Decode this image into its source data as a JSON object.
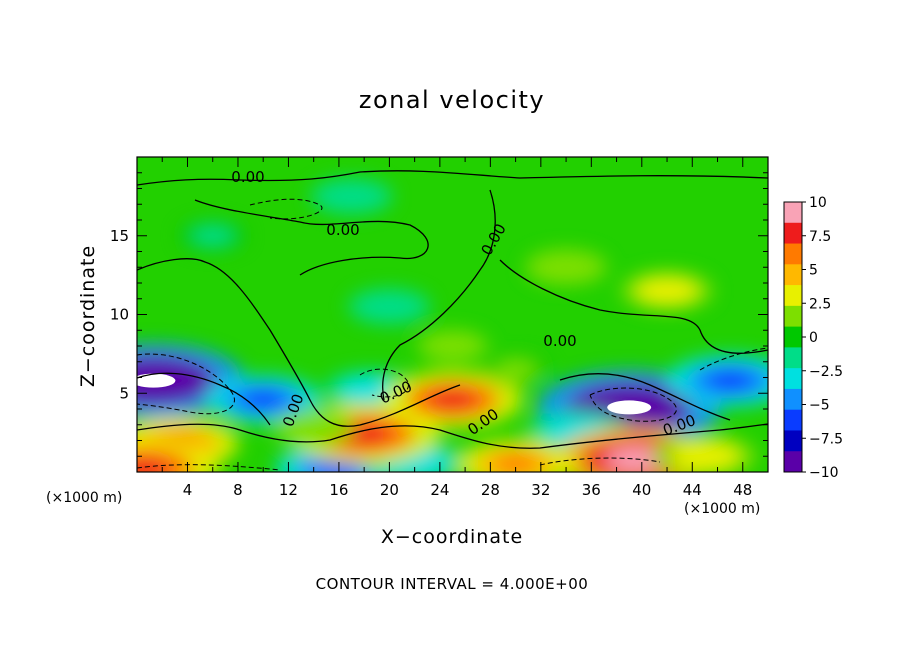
{
  "chart_data": {
    "type": "heatmap",
    "title": "zonal velocity",
    "xlabel": "X−coordinate",
    "ylabel": "Z−coordinate",
    "x_unit": "(×1000 m)",
    "note": "CONTOUR INTERVAL = 4.000E+00",
    "xlim": [
      0,
      50
    ],
    "ylim": [
      0,
      20
    ],
    "x_ticks": [
      4,
      8,
      12,
      16,
      20,
      24,
      28,
      32,
      36,
      40,
      44,
      48
    ],
    "y_ticks": [
      5,
      10,
      15
    ],
    "colorbar": {
      "ticks": [
        10,
        7.5,
        5,
        2.5,
        0,
        -2.5,
        -5,
        -7.5,
        -10
      ],
      "tick_labels": [
        "10",
        "7.5",
        "5",
        "2.5",
        "0",
        "−2.5",
        "−5",
        "−7.5",
        "−10"
      ],
      "colors": [
        "#f9a3b6",
        "#ee1c1c",
        "#ff7a00",
        "#ffb800",
        "#e8f000",
        "#7ddf00",
        "#00c800",
        "#00dd88",
        "#00e0e0",
        "#1090ff",
        "#0a3cff",
        "#0000c0",
        "#5a00a8"
      ]
    },
    "contour_labels": [
      "0.00",
      "0.00",
      "0.00",
      "0.00",
      "0.00",
      "0.00",
      "0.00",
      "0.00"
    ],
    "features": [
      {
        "x": 1.3,
        "z": 5.8,
        "value": -12
      },
      {
        "x": 10.0,
        "z": 4.6,
        "value": -6
      },
      {
        "x": 16.0,
        "z": 0.2,
        "value": -7
      },
      {
        "x": 18.5,
        "z": 5.2,
        "value": -4
      },
      {
        "x": 39.0,
        "z": 4.1,
        "value": -12
      },
      {
        "x": 47.0,
        "z": 5.8,
        "value": -7
      },
      {
        "x": 35.0,
        "z": 2.5,
        "value": -5
      },
      {
        "x": 22.0,
        "z": 0.6,
        "value": -5
      },
      {
        "x": 18.0,
        "z": 2.4,
        "value": 9
      },
      {
        "x": 25.0,
        "z": 4.6,
        "value": 8
      },
      {
        "x": 14.0,
        "z": 2.8,
        "value": 3
      },
      {
        "x": 3.0,
        "z": 1.8,
        "value": 7
      },
      {
        "x": 39.5,
        "z": 0.8,
        "value": 10
      },
      {
        "x": 0.5,
        "z": 0.2,
        "value": 9
      },
      {
        "x": 45.0,
        "z": 1.0,
        "value": 5
      },
      {
        "x": 30.0,
        "z": 0.5,
        "value": 6
      },
      {
        "x": 34.0,
        "z": 13.0,
        "value": 3
      },
      {
        "x": 42.0,
        "z": 11.5,
        "value": 4
      },
      {
        "x": 17.0,
        "z": 17.5,
        "value": -3
      },
      {
        "x": 25.0,
        "z": 8.0,
        "value": 2
      },
      {
        "x": 20.0,
        "z": 10.5,
        "value": -3
      },
      {
        "x": 6.0,
        "z": 15.0,
        "value": -1.5
      },
      {
        "x": 30.0,
        "z": 6.5,
        "value": 1.5
      }
    ]
  }
}
